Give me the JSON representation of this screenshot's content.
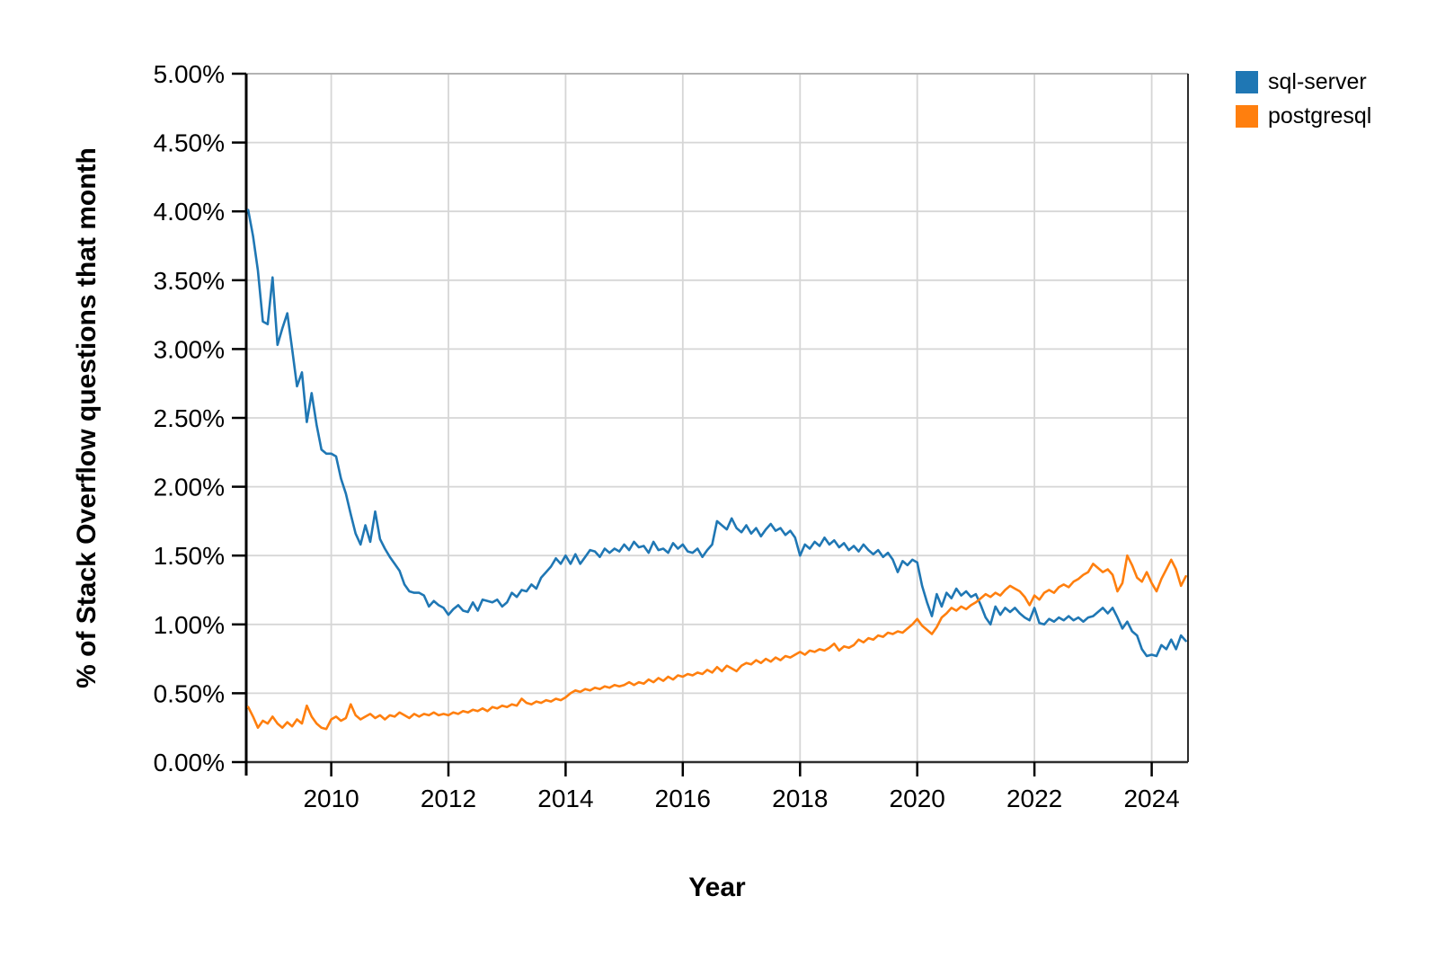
{
  "page": {
    "background": "#ffffff"
  },
  "chart_data": {
    "type": "line",
    "title": "",
    "xlabel": "Year",
    "ylabel": "% of Stack Overflow questions that month",
    "interval": "monthly",
    "start_month": "2008-08",
    "end_month": "2024-08",
    "xlim": [
      2008.55,
      2024.62
    ],
    "ylim": [
      0,
      5
    ],
    "grid": true,
    "legend_position": "outside-top-right",
    "grid_color": "#d6d6d6",
    "x_ticks": [
      {
        "value": 2010,
        "label": "2010"
      },
      {
        "value": 2012,
        "label": "2012"
      },
      {
        "value": 2014,
        "label": "2014"
      },
      {
        "value": 2016,
        "label": "2016"
      },
      {
        "value": 2018,
        "label": "2018"
      },
      {
        "value": 2020,
        "label": "2020"
      },
      {
        "value": 2022,
        "label": "2022"
      },
      {
        "value": 2024,
        "label": "2024"
      }
    ],
    "y_ticks": [
      {
        "value": 0.0,
        "label": "0.00%"
      },
      {
        "value": 0.5,
        "label": "0.50%"
      },
      {
        "value": 1.0,
        "label": "1.00%"
      },
      {
        "value": 1.5,
        "label": "1.50%"
      },
      {
        "value": 2.0,
        "label": "2.00%"
      },
      {
        "value": 2.5,
        "label": "2.50%"
      },
      {
        "value": 3.0,
        "label": "3.00%"
      },
      {
        "value": 3.5,
        "label": "3.50%"
      },
      {
        "value": 4.0,
        "label": "4.00%"
      },
      {
        "value": 4.5,
        "label": "4.50%"
      },
      {
        "value": 5.0,
        "label": "5.00%"
      }
    ],
    "series": [
      {
        "name": "sql-server",
        "color": "#1f77b4",
        "values_percent": [
          4.01,
          3.82,
          3.57,
          3.2,
          3.18,
          3.52,
          3.03,
          3.15,
          3.26,
          3.0,
          2.73,
          2.83,
          2.47,
          2.68,
          2.45,
          2.27,
          2.24,
          2.24,
          2.22,
          2.06,
          1.95,
          1.8,
          1.66,
          1.58,
          1.72,
          1.6,
          1.82,
          1.62,
          1.55,
          1.49,
          1.44,
          1.39,
          1.29,
          1.24,
          1.23,
          1.23,
          1.21,
          1.13,
          1.17,
          1.14,
          1.12,
          1.07,
          1.11,
          1.14,
          1.1,
          1.09,
          1.16,
          1.1,
          1.18,
          1.17,
          1.16,
          1.18,
          1.13,
          1.16,
          1.23,
          1.2,
          1.25,
          1.24,
          1.29,
          1.26,
          1.34,
          1.38,
          1.42,
          1.48,
          1.44,
          1.5,
          1.44,
          1.51,
          1.44,
          1.49,
          1.54,
          1.53,
          1.49,
          1.55,
          1.52,
          1.55,
          1.53,
          1.58,
          1.54,
          1.6,
          1.56,
          1.57,
          1.52,
          1.6,
          1.54,
          1.55,
          1.52,
          1.59,
          1.55,
          1.58,
          1.53,
          1.52,
          1.55,
          1.49,
          1.54,
          1.58,
          1.75,
          1.72,
          1.69,
          1.77,
          1.7,
          1.67,
          1.72,
          1.66,
          1.7,
          1.64,
          1.69,
          1.73,
          1.68,
          1.7,
          1.65,
          1.68,
          1.63,
          1.5,
          1.58,
          1.55,
          1.6,
          1.57,
          1.63,
          1.58,
          1.61,
          1.56,
          1.59,
          1.54,
          1.57,
          1.53,
          1.58,
          1.54,
          1.51,
          1.54,
          1.49,
          1.52,
          1.47,
          1.38,
          1.46,
          1.43,
          1.47,
          1.45,
          1.28,
          1.16,
          1.06,
          1.22,
          1.13,
          1.23,
          1.19,
          1.26,
          1.21,
          1.24,
          1.2,
          1.22,
          1.14,
          1.05,
          1.0,
          1.13,
          1.07,
          1.12,
          1.09,
          1.12,
          1.08,
          1.05,
          1.03,
          1.12,
          1.01,
          1.0,
          1.04,
          1.02,
          1.05,
          1.03,
          1.06,
          1.03,
          1.05,
          1.02,
          1.05,
          1.06,
          1.09,
          1.12,
          1.08,
          1.12,
          1.05,
          0.97,
          1.02,
          0.95,
          0.92,
          0.82,
          0.77,
          0.78,
          0.77,
          0.85,
          0.82,
          0.89,
          0.82,
          0.92,
          0.88
        ]
      },
      {
        "name": "postgresql",
        "color": "#ff7f0e",
        "values_percent": [
          0.4,
          0.33,
          0.25,
          0.3,
          0.28,
          0.33,
          0.28,
          0.25,
          0.29,
          0.26,
          0.31,
          0.28,
          0.41,
          0.33,
          0.28,
          0.25,
          0.24,
          0.31,
          0.33,
          0.3,
          0.32,
          0.42,
          0.34,
          0.31,
          0.33,
          0.35,
          0.32,
          0.34,
          0.31,
          0.34,
          0.33,
          0.36,
          0.34,
          0.32,
          0.35,
          0.33,
          0.35,
          0.34,
          0.36,
          0.34,
          0.35,
          0.34,
          0.36,
          0.35,
          0.37,
          0.36,
          0.38,
          0.37,
          0.39,
          0.37,
          0.4,
          0.39,
          0.41,
          0.4,
          0.42,
          0.41,
          0.46,
          0.43,
          0.42,
          0.44,
          0.43,
          0.45,
          0.44,
          0.46,
          0.45,
          0.47,
          0.5,
          0.52,
          0.51,
          0.53,
          0.52,
          0.54,
          0.53,
          0.55,
          0.54,
          0.56,
          0.55,
          0.56,
          0.58,
          0.56,
          0.58,
          0.57,
          0.6,
          0.58,
          0.61,
          0.59,
          0.62,
          0.6,
          0.63,
          0.62,
          0.64,
          0.63,
          0.65,
          0.64,
          0.67,
          0.65,
          0.69,
          0.66,
          0.7,
          0.68,
          0.66,
          0.7,
          0.72,
          0.71,
          0.74,
          0.72,
          0.75,
          0.73,
          0.76,
          0.74,
          0.77,
          0.76,
          0.78,
          0.8,
          0.78,
          0.81,
          0.8,
          0.82,
          0.81,
          0.83,
          0.86,
          0.81,
          0.84,
          0.83,
          0.85,
          0.89,
          0.87,
          0.9,
          0.89,
          0.92,
          0.91,
          0.94,
          0.93,
          0.95,
          0.94,
          0.97,
          1.0,
          1.04,
          0.99,
          0.96,
          0.93,
          0.98,
          1.05,
          1.08,
          1.12,
          1.1,
          1.13,
          1.11,
          1.14,
          1.16,
          1.19,
          1.22,
          1.2,
          1.23,
          1.21,
          1.25,
          1.28,
          1.26,
          1.24,
          1.2,
          1.14,
          1.21,
          1.18,
          1.23,
          1.25,
          1.23,
          1.27,
          1.29,
          1.27,
          1.31,
          1.33,
          1.36,
          1.38,
          1.44,
          1.41,
          1.38,
          1.4,
          1.36,
          1.24,
          1.3,
          1.5,
          1.43,
          1.34,
          1.31,
          1.38,
          1.3,
          1.24,
          1.33,
          1.4,
          1.47,
          1.4,
          1.28,
          1.35
        ]
      }
    ]
  }
}
